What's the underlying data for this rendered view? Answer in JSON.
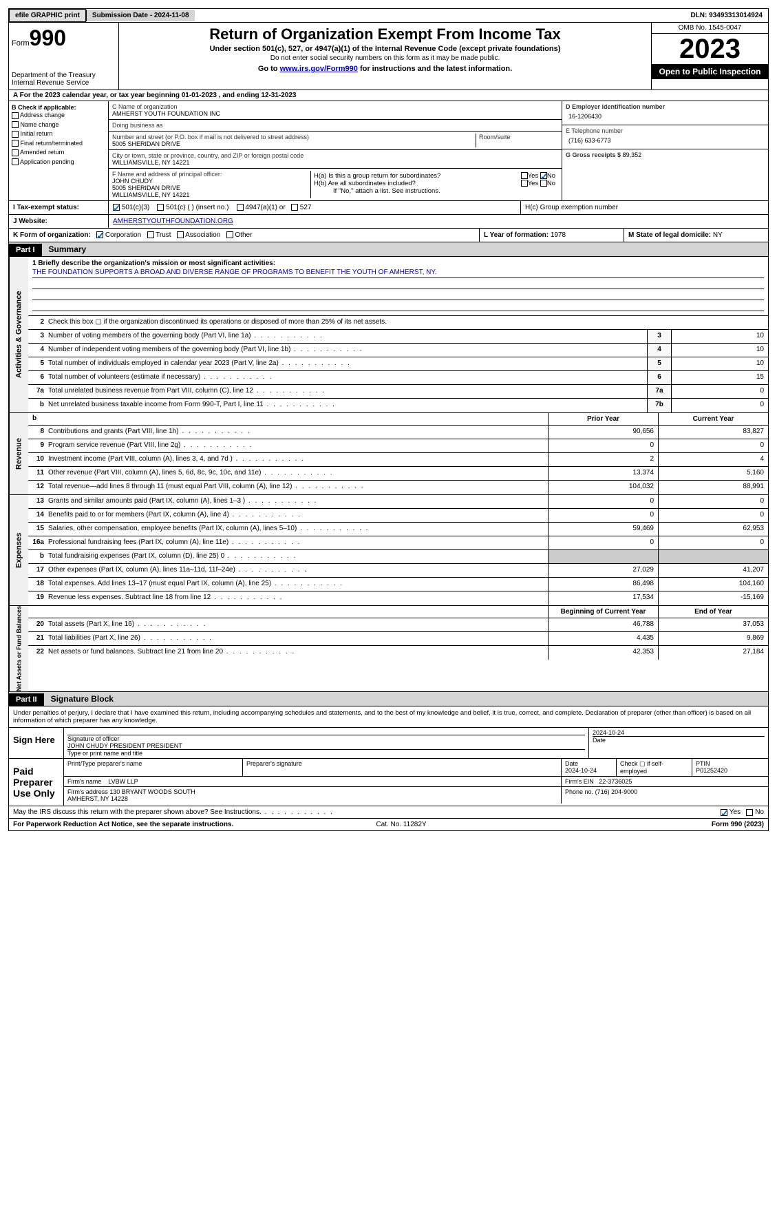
{
  "topbar": {
    "efile": "efile GRAPHIC print",
    "submission": "Submission Date - 2024-11-08",
    "dln": "DLN: 93493313014924"
  },
  "header": {
    "form_prefix": "Form",
    "form_no": "990",
    "dept": "Department of the Treasury\nInternal Revenue Service",
    "title": "Return of Organization Exempt From Income Tax",
    "subtitle": "Under section 501(c), 527, or 4947(a)(1) of the Internal Revenue Code (except private foundations)",
    "warn": "Do not enter social security numbers on this form as it may be made public.",
    "goto_pre": "Go to ",
    "goto_link": "www.irs.gov/Form990",
    "goto_post": " for instructions and the latest information.",
    "omb": "OMB No. 1545-0047",
    "year": "2023",
    "open": "Open to Public Inspection"
  },
  "row_a": "For the 2023 calendar year, or tax year beginning 01-01-2023   , and ending 12-31-2023",
  "section_b": {
    "title": "B Check if applicable:",
    "opts": [
      "Address change",
      "Name change",
      "Initial return",
      "Final return/terminated",
      "Amended return",
      "Application pending"
    ]
  },
  "org": {
    "name_label": "C Name of organization",
    "name": "AMHERST YOUTH FOUNDATION INC",
    "dba_label": "Doing business as",
    "dba": "",
    "street_label": "Number and street (or P.O. box if mail is not delivered to street address)",
    "room_label": "Room/suite",
    "street": "5005 SHERIDAN DRIVE",
    "city_label": "City or town, state or province, country, and ZIP or foreign postal code",
    "city": "WILLIAMSVILLE, NY  14221",
    "officer_label": "F  Name and address of principal officer:",
    "officer": "JOHN CHUDY\n5005 SHERIDAN DRIVE\nWILLIAMSVILLE, NY  14221"
  },
  "right": {
    "ein_label": "D Employer identification number",
    "ein": "16-1206430",
    "tel_label": "E Telephone number",
    "tel": "(716) 633-6773",
    "gross_label": "G Gross receipts $",
    "gross": "89,352",
    "ha": "H(a)  Is this a group return for subordinates?",
    "hb": "H(b)  Are all subordinates included?",
    "hb_note": "If \"No,\" attach a list. See instructions.",
    "hc": "H(c)  Group exemption number"
  },
  "status": {
    "label": "Tax-exempt status:",
    "opts": [
      "501(c)(3)",
      "501(c) (  ) (insert no.)",
      "4947(a)(1) or",
      "527"
    ]
  },
  "website": {
    "label": "Website:",
    "val": "AMHERSTYOUTHFOUNDATION.ORG"
  },
  "korg": {
    "label": "K Form of organization:",
    "opts": [
      "Corporation",
      "Trust",
      "Association",
      "Other"
    ],
    "year_label": "L Year of formation:",
    "year": "1978",
    "state_label": "M State of legal domicile:",
    "state": "NY"
  },
  "parts": {
    "p1": "Part I",
    "p1_title": "Summary",
    "p2": "Part II",
    "p2_title": "Signature Block"
  },
  "vtabs": {
    "gov": "Activities & Governance",
    "rev": "Revenue",
    "exp": "Expenses",
    "net": "Net Assets or Fund Balances"
  },
  "mission": {
    "intro": "1   Briefly describe the organization's mission or most significant activities:",
    "text": "THE FOUNDATION SUPPORTS A BROAD AND DIVERSE RANGE OF PROGRAMS TO BENEFIT THE YOUTH OF AMHERST, NY."
  },
  "gov_lines": [
    {
      "n": "2",
      "d": "Check this box ▢ if the organization discontinued its operations or disposed of more than 25% of its net assets."
    },
    {
      "n": "3",
      "d": "Number of voting members of the governing body (Part VI, line 1a)",
      "c": "3",
      "v": "10"
    },
    {
      "n": "4",
      "d": "Number of independent voting members of the governing body (Part VI, line 1b)",
      "c": "4",
      "v": "10"
    },
    {
      "n": "5",
      "d": "Total number of individuals employed in calendar year 2023 (Part V, line 2a)",
      "c": "5",
      "v": "10"
    },
    {
      "n": "6",
      "d": "Total number of volunteers (estimate if necessary)",
      "c": "6",
      "v": "15"
    },
    {
      "n": "7a",
      "d": "Total unrelated business revenue from Part VIII, column (C), line 12",
      "c": "7a",
      "v": "0"
    },
    {
      "n": "b",
      "d": "Net unrelated business taxable income from Form 990-T, Part I, line 11",
      "c": "7b",
      "v": "0"
    }
  ],
  "col_hdrs": {
    "prior": "Prior Year",
    "current": "Current Year",
    "beg": "Beginning of Current Year",
    "end": "End of Year"
  },
  "rev_lines": [
    {
      "n": "8",
      "d": "Contributions and grants (Part VIII, line 1h)",
      "p": "90,656",
      "c": "83,827"
    },
    {
      "n": "9",
      "d": "Program service revenue (Part VIII, line 2g)",
      "p": "0",
      "c": "0"
    },
    {
      "n": "10",
      "d": "Investment income (Part VIII, column (A), lines 3, 4, and 7d )",
      "p": "2",
      "c": "4"
    },
    {
      "n": "11",
      "d": "Other revenue (Part VIII, column (A), lines 5, 6d, 8c, 9c, 10c, and 11e)",
      "p": "13,374",
      "c": "5,160"
    },
    {
      "n": "12",
      "d": "Total revenue—add lines 8 through 11 (must equal Part VIII, column (A), line 12)",
      "p": "104,032",
      "c": "88,991"
    }
  ],
  "exp_lines": [
    {
      "n": "13",
      "d": "Grants and similar amounts paid (Part IX, column (A), lines 1–3 )",
      "p": "0",
      "c": "0"
    },
    {
      "n": "14",
      "d": "Benefits paid to or for members (Part IX, column (A), line 4)",
      "p": "0",
      "c": "0"
    },
    {
      "n": "15",
      "d": "Salaries, other compensation, employee benefits (Part IX, column (A), lines 5–10)",
      "p": "59,469",
      "c": "62,953"
    },
    {
      "n": "16a",
      "d": "Professional fundraising fees (Part IX, column (A), line 11e)",
      "p": "0",
      "c": "0"
    },
    {
      "n": "b",
      "d": "Total fundraising expenses (Part IX, column (D), line 25) 0",
      "p": "",
      "c": "",
      "grey": true
    },
    {
      "n": "17",
      "d": "Other expenses (Part IX, column (A), lines 11a–11d, 11f–24e)",
      "p": "27,029",
      "c": "41,207"
    },
    {
      "n": "18",
      "d": "Total expenses. Add lines 13–17 (must equal Part IX, column (A), line 25)",
      "p": "86,498",
      "c": "104,160"
    },
    {
      "n": "19",
      "d": "Revenue less expenses. Subtract line 18 from line 12",
      "p": "17,534",
      "c": "-15,169"
    }
  ],
  "net_lines": [
    {
      "n": "20",
      "d": "Total assets (Part X, line 16)",
      "p": "46,788",
      "c": "37,053"
    },
    {
      "n": "21",
      "d": "Total liabilities (Part X, line 26)",
      "p": "4,435",
      "c": "9,869"
    },
    {
      "n": "22",
      "d": "Net assets or fund balances. Subtract line 21 from line 20",
      "p": "42,353",
      "c": "27,184"
    }
  ],
  "sig_decl": "Under penalties of perjury, I declare that I have examined this return, including accompanying schedules and statements, and to the best of my knowledge and belief, it is true, correct, and complete. Declaration of preparer (other than officer) is based on all information of which preparer has any knowledge.",
  "sign": {
    "here": "Sign Here",
    "sig_label": "Signature of officer",
    "date_label": "Date",
    "date": "2024-10-24",
    "name": "JOHN CHUDY PRESIDENT  PRESIDENT",
    "name_label": "Type or print name and title"
  },
  "paid": {
    "label": "Paid Preparer Use Only",
    "pname_label": "Print/Type preparer's name",
    "psig_label": "Preparer's signature",
    "pdate_label": "Date",
    "pdate": "2024-10-24",
    "selfemp": "Check ▢ if self-employed",
    "ptin_label": "PTIN",
    "ptin": "P01252420",
    "firm_label": "Firm's name",
    "firm": "LVBW LLP",
    "fein_label": "Firm's EIN",
    "fein": "22-3736025",
    "faddr_label": "Firm's address",
    "faddr": "130 BRYANT WOODS SOUTH\nAMHERST, NY  14228",
    "fphone_label": "Phone no.",
    "fphone": "(716) 204-9000"
  },
  "discuss": "May the IRS discuss this return with the preparer shown above? See Instructions.",
  "footer": {
    "left": "For Paperwork Reduction Act Notice, see the separate instructions.",
    "mid": "Cat. No. 11282Y",
    "right": "Form 990 (2023)"
  },
  "yesno": {
    "yes": "Yes",
    "no": "No"
  }
}
